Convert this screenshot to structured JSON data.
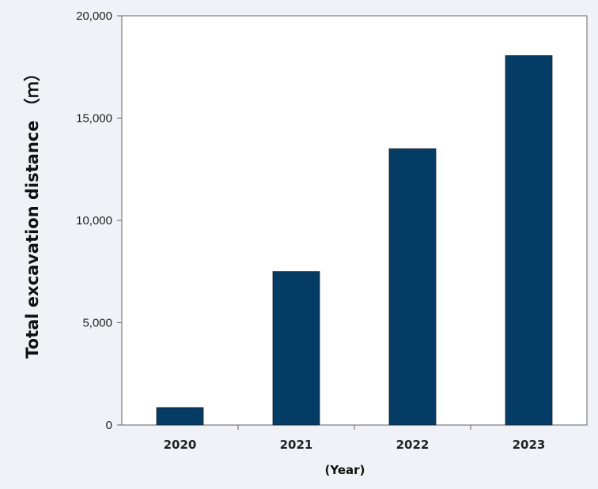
{
  "chart_data": {
    "type": "bar",
    "categories": [
      "2020",
      "2021",
      "2022",
      "2023"
    ],
    "values": [
      850,
      7500,
      13500,
      18050
    ],
    "xlabel": "(Year)",
    "ylabel": "Total excavation distance （ｍ）",
    "ylim": [
      0,
      20000
    ],
    "yticks": [
      0,
      5000,
      10000,
      15000,
      20000
    ],
    "ytick_labels": [
      "0",
      "5,000",
      "10,000",
      "15,000",
      "20,000"
    ],
    "grid": false,
    "legend": "none",
    "colors": {
      "bar": "#053c66",
      "plot_background": "#ffffff",
      "page_background": "#f1f2f7",
      "axis": "#666666"
    }
  }
}
